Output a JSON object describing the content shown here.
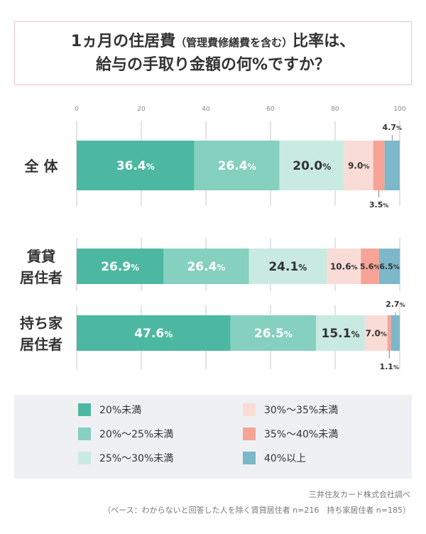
{
  "title": {
    "line1_a": "1ヵ月の住居費",
    "line1_b": "（管理費修繕費を含む）",
    "line1_c": "比率は、",
    "line2": "給与の手取り金額の何%ですか？"
  },
  "chart_data": {
    "type": "bar",
    "orientation": "horizontal",
    "stacked": true,
    "xlim": [
      0,
      100
    ],
    "xticks": [
      "0",
      "20",
      "40",
      "60",
      "80",
      "100"
    ],
    "grid": true,
    "categories": [
      {
        "lines": [
          "全 体"
        ]
      },
      {
        "lines": [
          "賃貸",
          "居住者"
        ]
      },
      {
        "lines": [
          "持ち家",
          "居住者"
        ]
      }
    ],
    "series": [
      {
        "name": "20%未満",
        "color": "#4db8a1",
        "values": [
          36.4,
          26.9,
          47.6
        ],
        "labels": [
          "36.4",
          "26.9",
          "47.6"
        ]
      },
      {
        "name": "20%～25%未満",
        "color": "#85d0bf",
        "values": [
          26.4,
          26.4,
          26.5
        ],
        "labels": [
          "26.4",
          "26.4",
          "26.5"
        ]
      },
      {
        "name": "25%～30%未満",
        "color": "#c9eae1",
        "values": [
          20.0,
          24.1,
          15.1
        ],
        "labels": [
          "20.0",
          "24.1",
          "15.1"
        ]
      },
      {
        "name": "30%～35%未満",
        "color": "#fadcd7",
        "values": [
          9.0,
          10.6,
          7.0
        ],
        "labels": [
          "9.0",
          "10.6",
          "7.0"
        ]
      },
      {
        "name": "35%～40%未満",
        "color": "#f7a396",
        "values": [
          3.5,
          5.6,
          1.1
        ],
        "labels": [
          "3.5",
          "5.6",
          "1.1"
        ]
      },
      {
        "name": "40%以上",
        "color": "#7cb8c9",
        "values": [
          4.7,
          6.5,
          2.7
        ],
        "labels": [
          "4.7",
          "6.5",
          "2.7"
        ]
      }
    ],
    "label_unit": "%"
  },
  "source": {
    "line1": "三井住友カード株式会社調べ",
    "line2": "（ベース：わからないと回答した人を除く賃貸居住者 n=216　持ち家居住者 n=185）"
  }
}
